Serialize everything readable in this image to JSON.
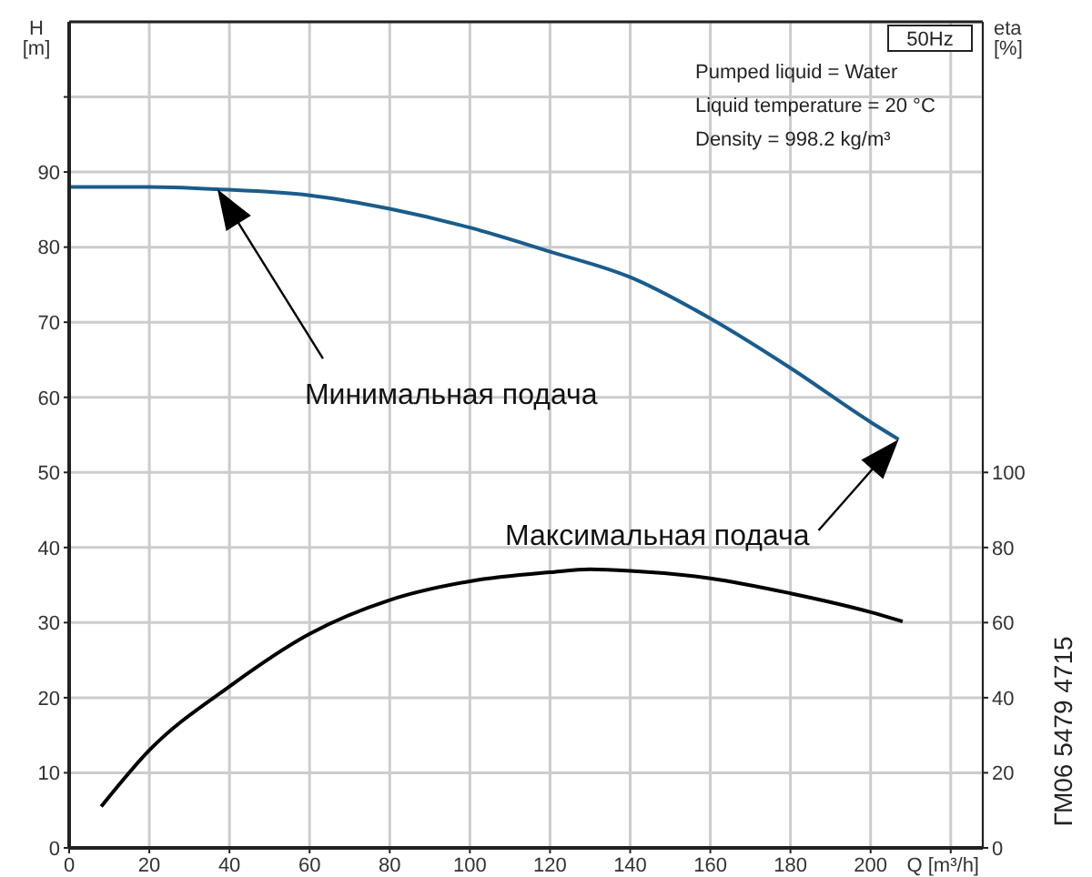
{
  "chart_data": {
    "type": "line",
    "title": "50Hz",
    "xlabel": "Q [m³/h]",
    "ylabel": "H [m]",
    "y2label": "eta [%]",
    "annotations": [
      "Минимальная подача",
      "Максимальная подача",
      "Pumped liquid = Water",
      "Liquid temperature = 20 °C",
      "Density = 998.2 kg/m³",
      "ГМ06 5479 4715"
    ],
    "xlim": [
      0,
      228
    ],
    "xticks": [
      0,
      20,
      40,
      60,
      80,
      100,
      120,
      140,
      160,
      180,
      200,
      {
        "value": 220,
        "label": null
      }
    ],
    "ylim": [
      0,
      110
    ],
    "yticks": [
      0,
      10,
      20,
      30,
      40,
      50,
      60,
      70,
      80,
      90,
      {
        "value": 100,
        "label": null
      }
    ],
    "y2lim": [
      0,
      220
    ],
    "y2ticks": [
      0,
      20,
      40,
      60,
      80,
      100
    ],
    "grid": true,
    "legend": false,
    "marker": "none",
    "line_style": "solid",
    "series": [
      {
        "color": "#1a5c8c",
        "x": [
          0,
          20,
          37,
          60,
          80,
          100,
          120,
          140,
          160,
          180,
          200,
          207
        ],
        "values": [
          88,
          88,
          87.7,
          86.9,
          85.1,
          82.6,
          79.4,
          76,
          70.5,
          63.9,
          56.7,
          54.4
        ]
      },
      {
        "color": "#000000",
        "axis": "y2",
        "x": [
          8,
          20,
          40,
          60,
          80,
          100,
          120,
          130,
          140,
          160,
          180,
          200,
          208
        ],
        "values": [
          11,
          26,
          43,
          57,
          66,
          71,
          73.4,
          74.2,
          73.8,
          71.8,
          67.8,
          62.8,
          60.3
        ]
      }
    ]
  }
}
